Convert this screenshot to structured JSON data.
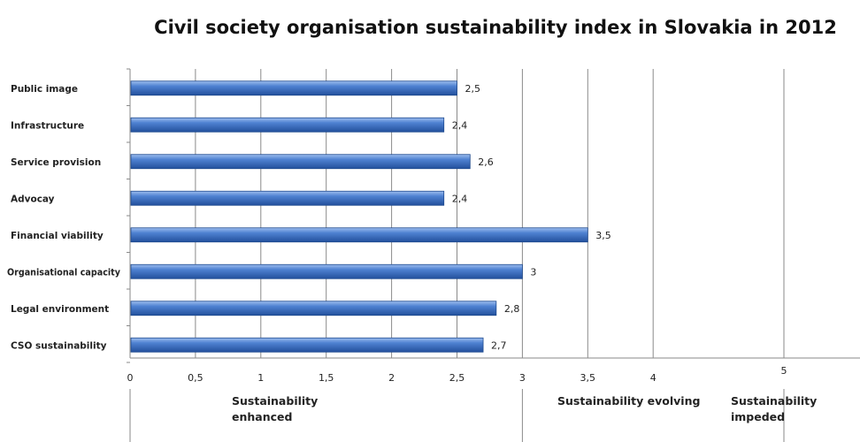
{
  "chart_data": {
    "type": "bar",
    "orientation": "horizontal",
    "title": "Civil society organisation sustainability index in Slovakia in 2012",
    "categories": [
      "Public image",
      "Infrastructure",
      "Service provision",
      "Advocay",
      "Financial viability",
      "Organisational capacity",
      "Legal environment",
      "CSO sustainability"
    ],
    "values": [
      2.5,
      2.4,
      2.6,
      2.4,
      3.5,
      3,
      2.8,
      2.7
    ],
    "value_labels": [
      "2,5",
      "2,4",
      "2,6",
      "2,4",
      "3,5",
      "3",
      "2,8",
      "2,7"
    ],
    "xlim": [
      0,
      5
    ],
    "x_ticks": [
      0,
      0.5,
      1,
      1.5,
      2,
      2.5,
      3,
      3.5,
      4,
      5
    ],
    "x_tick_labels": [
      "0",
      "0,5",
      "1",
      "1,5",
      "2",
      "2,5",
      "3",
      "3,5",
      "4",
      "5"
    ],
    "grid": "vertical",
    "bar_color": "#3F72C6",
    "bands": [
      {
        "label_lines": [
          "Sustainability",
          "enhanced"
        ],
        "from": 0,
        "to": 3
      },
      {
        "label_lines": [
          "Sustainability evolving"
        ],
        "from": 3,
        "to": 5
      },
      {
        "label_lines": [
          "Sustainability",
          "impeded"
        ],
        "from": 5,
        "to": 7
      }
    ]
  }
}
